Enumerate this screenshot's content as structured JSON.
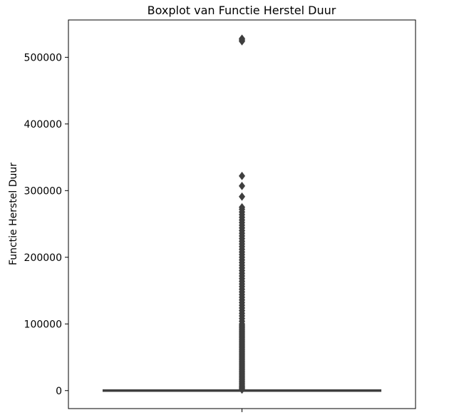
{
  "chart_data": {
    "type": "boxplot",
    "title": "Boxplot van Functie Herstel Duur",
    "xlabel": "",
    "ylabel": "Functie Herstel Duur",
    "ylim": [
      -27000,
      556000
    ],
    "yticks": [
      0,
      100000,
      200000,
      300000,
      400000,
      500000
    ],
    "ytick_labels": [
      "0",
      "100000",
      "200000",
      "300000",
      "400000",
      "500000"
    ],
    "grid": false,
    "legend": "none",
    "box": {
      "q1": 0,
      "median": 0,
      "q3": 0,
      "whisker_low": 0,
      "whisker_high": 0
    },
    "outliers": [
      528000,
      526000,
      524000,
      322000,
      307000,
      291000,
      275000,
      272000,
      268000,
      264000,
      260000,
      256000,
      252000,
      248000,
      244000,
      240000,
      236000,
      232000,
      228000,
      224000,
      220000,
      216000,
      212000,
      208000,
      204000,
      200000,
      196000,
      192000,
      188000,
      184000,
      180000,
      176000,
      172000,
      168000,
      164000,
      160000,
      156000,
      152000,
      148000,
      144000,
      140000,
      136000,
      132000,
      128000,
      124000,
      120000,
      116000,
      112000,
      108000,
      104000,
      100000,
      97000,
      94000,
      91000,
      88000,
      85000,
      82000,
      79000,
      76000,
      73000,
      70000,
      67000,
      64000,
      61000,
      58000,
      55000,
      52000,
      49000,
      46000,
      43000,
      40000,
      37000,
      34000,
      31000,
      28000,
      25000,
      22000,
      19000,
      16000,
      13000,
      10000,
      7000,
      5000,
      3000,
      1500
    ],
    "colors": {
      "box_line": "#3f3f3f",
      "outlier": "#3f3f3f",
      "axes": "#000000"
    }
  }
}
